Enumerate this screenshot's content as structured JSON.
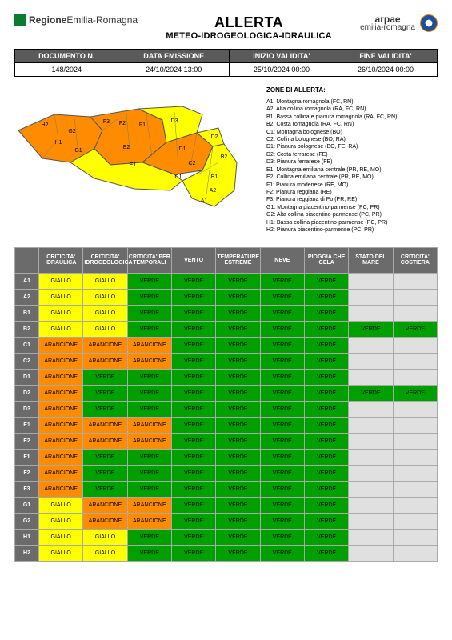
{
  "header": {
    "region_name_bold": "Regione",
    "region_name_rest": "Emilia-Romagna",
    "title_line1": "ALLERTA",
    "title_line2": "METEO-IDROGEOLOGICA-IDRAULICA",
    "arpae_big": "arpae",
    "arpae_small": "emilia-romagna"
  },
  "meta_table": {
    "columns": [
      "DOCUMENTO N.",
      "DATA EMISSIONE",
      "INIZIO VALIDITA'",
      "FINE VALIDITA'"
    ],
    "values": [
      "148/2024",
      "24/10/2024 13:00",
      "25/10/2024 00:00",
      "26/10/2024 00:00"
    ]
  },
  "zones_legend": {
    "title": "ZONE DI ALLERTA:",
    "items": [
      "A1: Montagna romagnola (FC, RN)",
      "A2: Alta collina romagnola (RA, FC, RN)",
      "B1: Bassa collina e pianura romagnola (RA, FC, RN)",
      "B2: Costa romagnola (RA, FC, RN)",
      "C1: Montagna bolognese (BO)",
      "C2: Collina bolognese (BO, RA)",
      "D1: Pianura bolognese (BO, FE, RA)",
      "D2: Costa ferrarese (FE)",
      "D3: Pianura ferrarese (FE)",
      "E1: Montagna emiliana centrale (PR, RE, MO)",
      "E2: Collina emiliana centrale (PR, RE, MO)",
      "F1: Pianura modenese (RE, MO)",
      "F2: Pianura reggiana (RE)",
      "F3: Pianura reggiana di Po (PR, RE)",
      "G1: Montagna piacentino-parmense (PC, PR)",
      "G2: Alta collina piacentino-parmense (PC, PR)",
      "H1: Bassa collina piacentino-parmense (PC, PR)",
      "H2: Pianura piacentino-parmense (PC, PR)"
    ]
  },
  "map": {
    "orange": "#ff8c00",
    "yellow": "#ffff00",
    "border": "#555555",
    "labels": [
      "H2",
      "H1",
      "G2",
      "G1",
      "F3",
      "F2",
      "F1",
      "E2",
      "E1",
      "D3",
      "D1",
      "D2",
      "C2",
      "C1",
      "B2",
      "B1",
      "A2",
      "A1"
    ]
  },
  "matrix": {
    "colors": {
      "GIALLO": "#ffff00",
      "ARANCIONE": "#ff8c00",
      "VERDE": "#00a000",
      "NONE": "#e0e0e0"
    },
    "columns": [
      "CRITICITA' IDRAULICA",
      "CRITICITA' IDROGEOLOGICA",
      "CRITICITA' PER TEMPORALI",
      "VENTO",
      "TEMPERATURE ESTREME",
      "NEVE",
      "PIOGGIA CHE GELA",
      "STATO DEL MARE",
      "CRITICITA' COSTIERA"
    ],
    "rows": [
      {
        "zone": "A1",
        "cells": [
          "GIALLO",
          "GIALLO",
          "VERDE",
          "VERDE",
          "VERDE",
          "VERDE",
          "VERDE",
          "",
          ""
        ]
      },
      {
        "zone": "A2",
        "cells": [
          "GIALLO",
          "GIALLO",
          "VERDE",
          "VERDE",
          "VERDE",
          "VERDE",
          "VERDE",
          "",
          ""
        ]
      },
      {
        "zone": "B1",
        "cells": [
          "GIALLO",
          "GIALLO",
          "VERDE",
          "VERDE",
          "VERDE",
          "VERDE",
          "VERDE",
          "",
          ""
        ]
      },
      {
        "zone": "B2",
        "cells": [
          "GIALLO",
          "GIALLO",
          "VERDE",
          "VERDE",
          "VERDE",
          "VERDE",
          "VERDE",
          "VERDE",
          "VERDE"
        ]
      },
      {
        "zone": "C1",
        "cells": [
          "ARANCIONE",
          "ARANCIONE",
          "ARANCIONE",
          "VERDE",
          "VERDE",
          "VERDE",
          "VERDE",
          "",
          ""
        ]
      },
      {
        "zone": "C2",
        "cells": [
          "ARANCIONE",
          "ARANCIONE",
          "ARANCIONE",
          "VERDE",
          "VERDE",
          "VERDE",
          "VERDE",
          "",
          ""
        ]
      },
      {
        "zone": "D1",
        "cells": [
          "ARANCIONE",
          "VERDE",
          "VERDE",
          "VERDE",
          "VERDE",
          "VERDE",
          "VERDE",
          "",
          ""
        ]
      },
      {
        "zone": "D2",
        "cells": [
          "ARANCIONE",
          "VERDE",
          "VERDE",
          "VERDE",
          "VERDE",
          "VERDE",
          "VERDE",
          "VERDE",
          "VERDE"
        ]
      },
      {
        "zone": "D3",
        "cells": [
          "ARANCIONE",
          "VERDE",
          "VERDE",
          "VERDE",
          "VERDE",
          "VERDE",
          "VERDE",
          "",
          ""
        ]
      },
      {
        "zone": "E1",
        "cells": [
          "ARANCIONE",
          "ARANCIONE",
          "ARANCIONE",
          "VERDE",
          "VERDE",
          "VERDE",
          "VERDE",
          "",
          ""
        ]
      },
      {
        "zone": "E2",
        "cells": [
          "ARANCIONE",
          "ARANCIONE",
          "ARANCIONE",
          "VERDE",
          "VERDE",
          "VERDE",
          "VERDE",
          "",
          ""
        ]
      },
      {
        "zone": "F1",
        "cells": [
          "ARANCIONE",
          "VERDE",
          "VERDE",
          "VERDE",
          "VERDE",
          "VERDE",
          "VERDE",
          "",
          ""
        ]
      },
      {
        "zone": "F2",
        "cells": [
          "ARANCIONE",
          "VERDE",
          "VERDE",
          "VERDE",
          "VERDE",
          "VERDE",
          "VERDE",
          "",
          ""
        ]
      },
      {
        "zone": "F3",
        "cells": [
          "ARANCIONE",
          "VERDE",
          "VERDE",
          "VERDE",
          "VERDE",
          "VERDE",
          "VERDE",
          "",
          ""
        ]
      },
      {
        "zone": "G1",
        "cells": [
          "GIALLO",
          "ARANCIONE",
          "ARANCIONE",
          "VERDE",
          "VERDE",
          "VERDE",
          "VERDE",
          "",
          ""
        ]
      },
      {
        "zone": "G2",
        "cells": [
          "GIALLO",
          "ARANCIONE",
          "ARANCIONE",
          "VERDE",
          "VERDE",
          "VERDE",
          "VERDE",
          "",
          ""
        ]
      },
      {
        "zone": "H1",
        "cells": [
          "GIALLO",
          "GIALLO",
          "VERDE",
          "VERDE",
          "VERDE",
          "VERDE",
          "VERDE",
          "",
          ""
        ]
      },
      {
        "zone": "H2",
        "cells": [
          "GIALLO",
          "GIALLO",
          "VERDE",
          "VERDE",
          "VERDE",
          "VERDE",
          "VERDE",
          "",
          ""
        ]
      }
    ]
  }
}
